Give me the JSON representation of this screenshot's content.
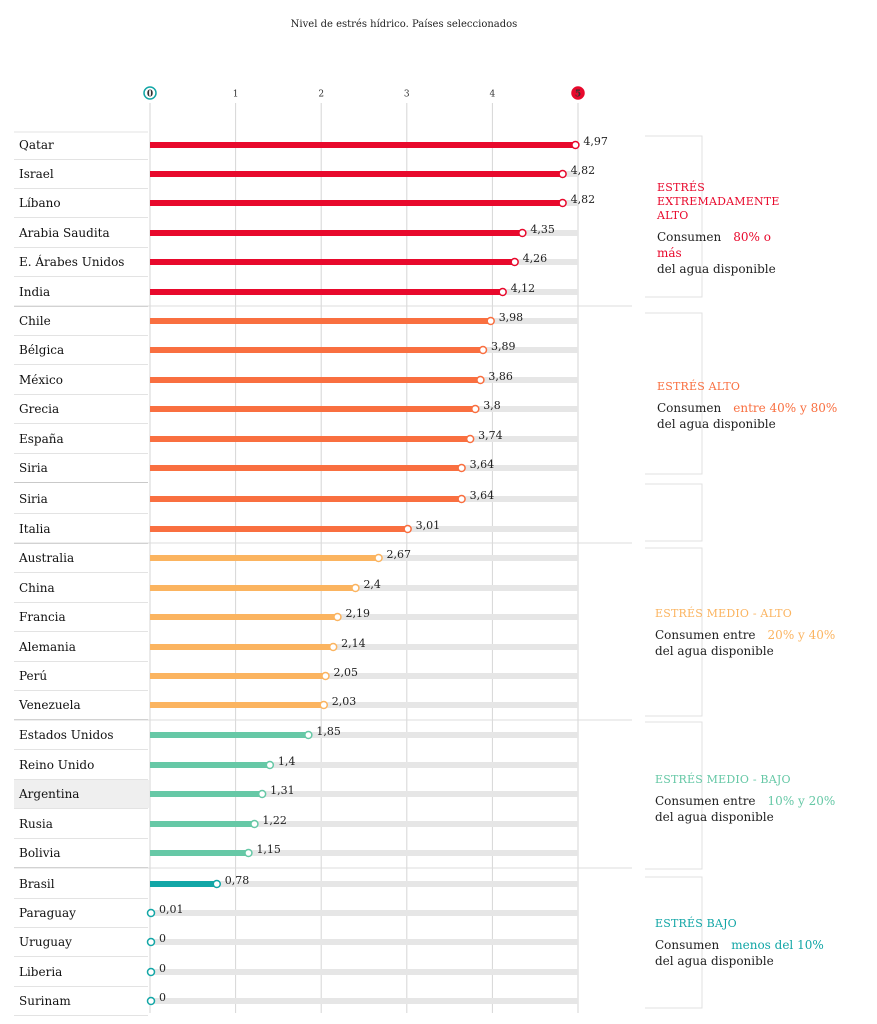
{
  "chart_data": {
    "type": "bar",
    "title": "Nivel de estrés hídrico. Países seleccionados",
    "xlim": [
      0,
      5
    ],
    "ticks": [
      "0",
      "1",
      "2",
      "3",
      "4",
      "5"
    ],
    "grid": true,
    "categories": [
      "Qatar",
      "Israel",
      "Líbano",
      "Arabia Saudita",
      "E. Árabes Unidos",
      "India",
      "Chile",
      "Bélgica",
      "México",
      "Grecia",
      "España",
      "Siria",
      "Siria",
      "Italia",
      "Australia",
      "China",
      "Francia",
      "Alemania",
      "Perú",
      "Venezuela",
      "Estados Unidos",
      "Reino Unido",
      "Argentina",
      "Rusia",
      "Bolivia",
      "Brasil",
      "Paraguay",
      "Uruguay",
      "Liberia",
      "Surinam"
    ],
    "values": [
      4.97,
      4.82,
      4.82,
      4.35,
      4.26,
      4.12,
      3.98,
      3.89,
      3.86,
      3.8,
      3.74,
      3.64,
      3.64,
      3.01,
      2.67,
      2.4,
      2.19,
      2.14,
      2.05,
      2.03,
      1.85,
      1.4,
      1.31,
      1.22,
      1.15,
      0.78,
      0.01,
      0,
      0,
      0
    ],
    "value_labels": [
      "4,97",
      "4,82",
      "4,82",
      "4,35",
      "4,26",
      "4,12",
      "3,98",
      "3,89",
      "3,86",
      "3,8",
      "3,74",
      "3,64",
      "3,64",
      "3,01",
      "2,67",
      "2,4",
      "2,19",
      "2,14",
      "2,05",
      "2,03",
      "1,85",
      "1,4",
      "1,31",
      "1,22",
      "1,15",
      "0,78",
      "0,01",
      "0",
      "0",
      "0"
    ],
    "categories_colors": [
      "#e8092c",
      "#e8092c",
      "#e8092c",
      "#e8092c",
      "#e8092c",
      "#e8092c",
      "#f96f40",
      "#f96f40",
      "#f96f40",
      "#f96f40",
      "#f96f40",
      "#f96f40",
      "#f96f40",
      "#f96f40",
      "#fbb460",
      "#fbb460",
      "#fbb460",
      "#fbb460",
      "#fbb460",
      "#fbb460",
      "#66c8a6",
      "#66c8a6",
      "#66c8a6",
      "#66c8a6",
      "#66c8a6",
      "#12a6a6",
      "#12a6a6",
      "#12a6a6",
      "#12a6a6",
      "#12a6a6"
    ],
    "highlighted_row": "Argentina",
    "track_color": "#e6e6e6",
    "tick_0_color": "#12a6a6",
    "tick_5_color": "#e8092c"
  },
  "bands": [
    {
      "head": "ESTRÉS EXTREMADAMENTE ALTO",
      "line1": "Consumen",
      "highlight": "80% o más",
      "line2": "del agua disponible",
      "color": "#e8092c"
    },
    {
      "head": "ESTRÉS ALTO",
      "line1": "Consumen",
      "highlight": "entre 40% y 80%",
      "line2": "del agua disponible",
      "color": "#f96f40"
    },
    {
      "head": "ESTRÉS MEDIO - ALTO",
      "line1": "Consumen entre",
      "highlight": "20% y 40%",
      "line2": "del agua disponible",
      "color": "#fbb460"
    },
    {
      "head": "ESTRÉS MEDIO - BAJO",
      "line1": "Consumen entre",
      "highlight": "10% y 20%",
      "line2": "del agua disponible",
      "color": "#66c8a6"
    },
    {
      "head": "ESTRÉS BAJO",
      "line1": "Consumen",
      "highlight": "menos del 10%",
      "line2": "del agua disponible",
      "color": "#12a6a6"
    }
  ]
}
